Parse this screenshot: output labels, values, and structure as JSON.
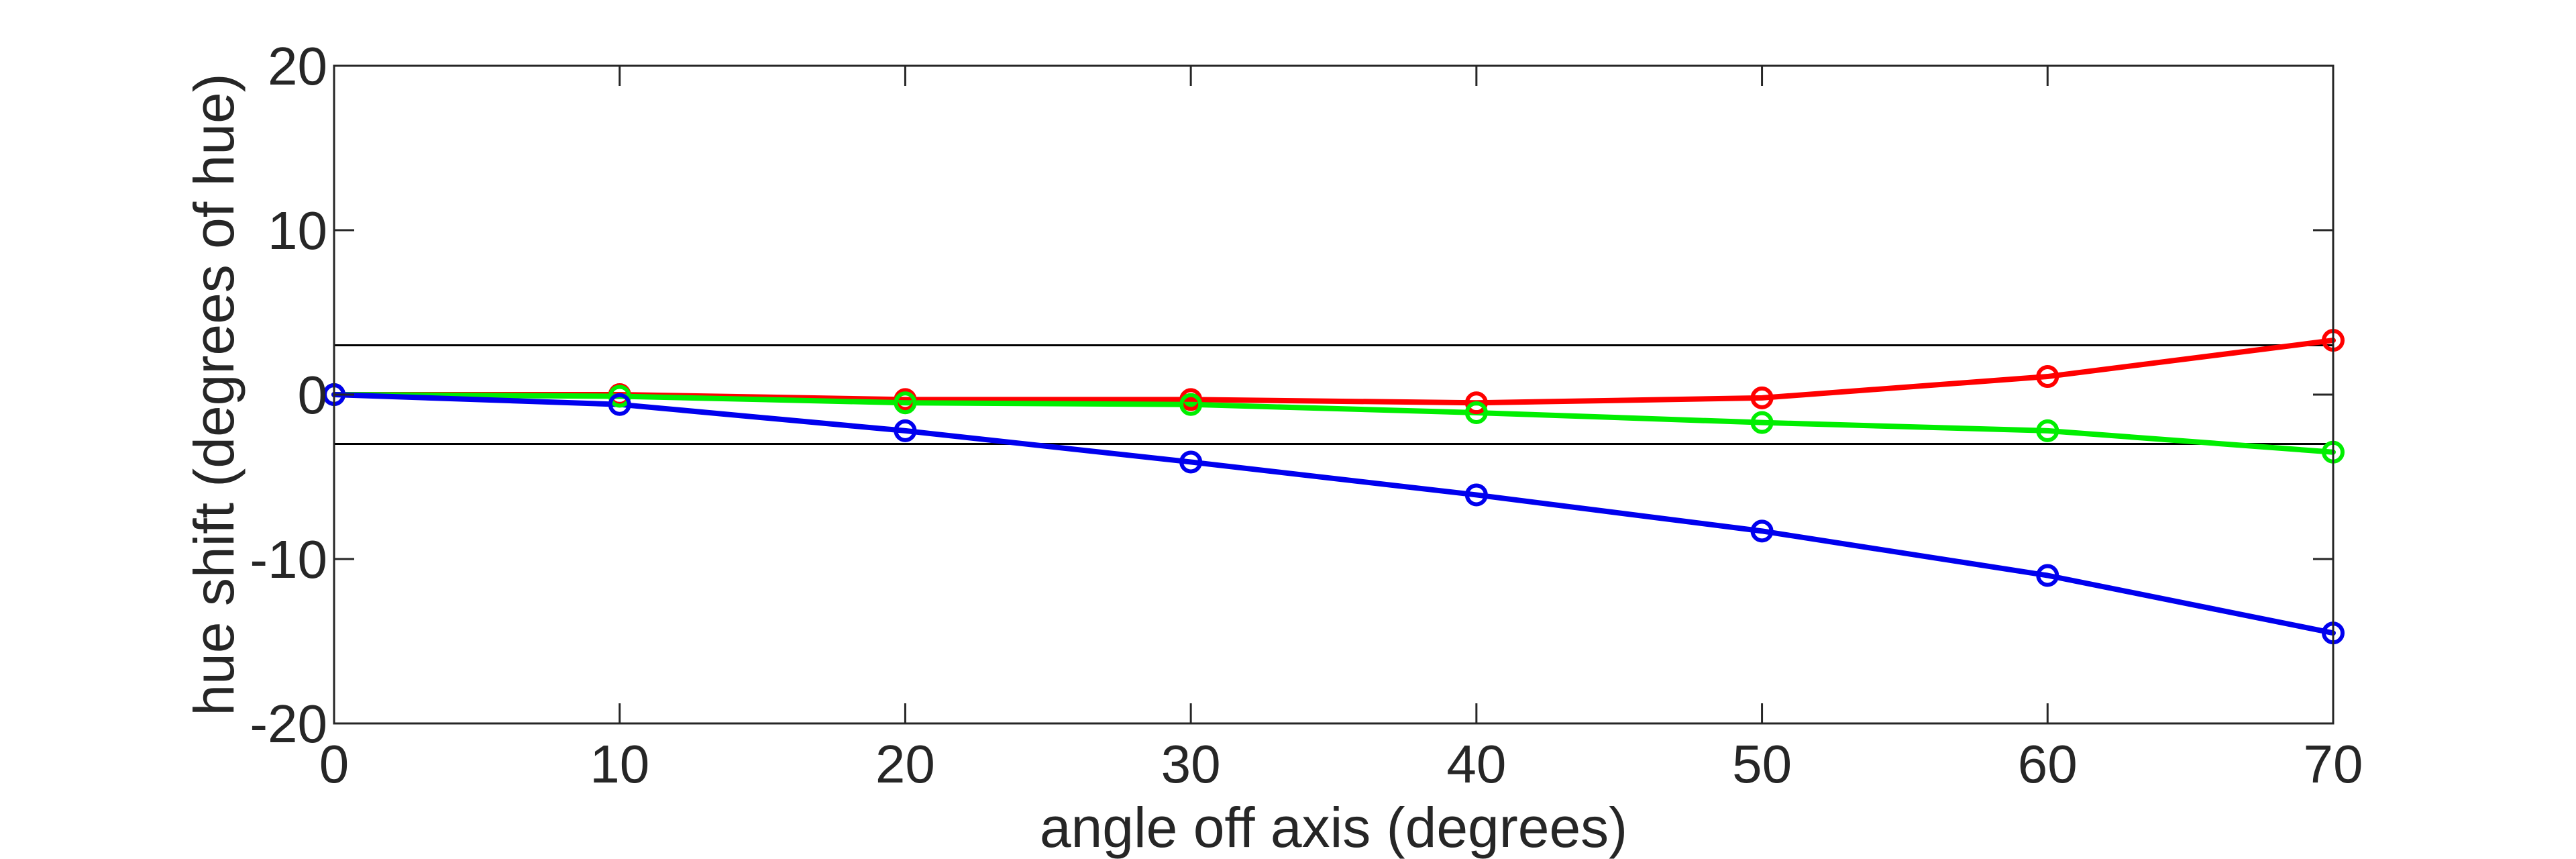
{
  "chart_data": {
    "type": "line",
    "title": "",
    "xlabel": "angle off axis (degrees)",
    "ylabel": "hue shift (degrees of hue)",
    "xlim": [
      0,
      70
    ],
    "ylim": [
      -20,
      20
    ],
    "xticks": [
      0,
      10,
      20,
      30,
      40,
      50,
      60,
      70
    ],
    "yticks": [
      -20,
      -10,
      0,
      10,
      20
    ],
    "x": [
      0,
      10,
      20,
      30,
      40,
      50,
      60,
      70
    ],
    "grid": false,
    "legend": "none",
    "reference_lines": [
      3,
      -3
    ],
    "series": [
      {
        "color": "#ff0000",
        "values": [
          0,
          0,
          -0.3,
          -0.3,
          -0.5,
          -0.2,
          1.1,
          3.3
        ]
      },
      {
        "color": "#00ee00",
        "values": [
          0,
          -0.1,
          -0.5,
          -0.6,
          -1.1,
          -1.7,
          -2.2,
          -3.5
        ]
      },
      {
        "color": "#0000ee",
        "values": [
          0,
          -0.6,
          -2.2,
          -4.1,
          -6.1,
          -8.3,
          -11.0,
          -14.5
        ]
      }
    ]
  }
}
